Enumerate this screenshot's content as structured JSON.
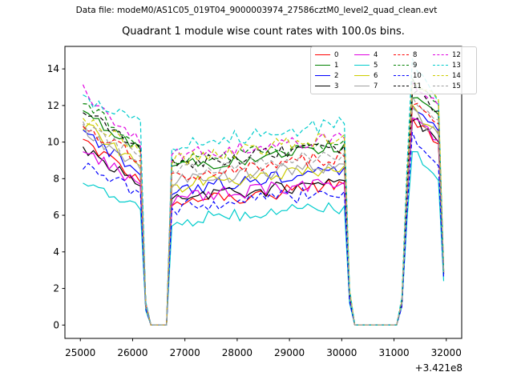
{
  "header": {
    "datafile_label": "Data file: modeM0/AS1C05_019T04_9000003974_27586cztM0_level2_quad_clean.evt"
  },
  "chart_data": {
    "type": "line",
    "title": "Quadrant 1 module wise count rates with 100.0s bins.",
    "bin_seconds": 100.0,
    "quadrant": 1,
    "x_axis": {
      "ticks": [
        25000,
        26000,
        27000,
        28000,
        29000,
        30000,
        31000,
        32000
      ],
      "offset_text": "+3.421e8",
      "lim": [
        24705,
        32295
      ]
    },
    "y_axis": {
      "ticks": [
        0,
        2,
        4,
        6,
        8,
        10,
        12,
        14
      ],
      "lim": [
        -0.73,
        15.23
      ]
    },
    "grid": false,
    "legend_position": "upper right",
    "profile_x": [
      25050,
      26150,
      26250,
      26350,
      26650,
      26750,
      30050,
      30150,
      30250,
      31050,
      31150,
      31250,
      31350,
      31850,
      31950
    ],
    "noise": {
      "segments": [
        [
          0,
          1
        ],
        [
          5,
          6
        ],
        [
          12,
          13
        ]
      ],
      "amp": [
        0.35,
        0.4,
        0.28
      ]
    },
    "series": [
      {
        "label": "0",
        "color": "#ff0000",
        "dash": false,
        "profile_y": [
          10.0,
          7.8,
          0.9,
          0,
          0,
          6.6,
          7.7,
          1.4,
          0,
          0,
          1.1,
          6.8,
          11.3,
          9.9,
          2.8
        ]
      },
      {
        "label": "1",
        "color": "#008000",
        "dash": false,
        "profile_y": [
          11.6,
          9.6,
          1.2,
          0,
          0,
          8.6,
          9.9,
          1.8,
          0,
          0,
          1.3,
          7.6,
          12.6,
          11.5,
          2.9
        ]
      },
      {
        "label": "2",
        "color": "#0000ff",
        "dash": false,
        "profile_y": [
          10.6,
          8.2,
          1.0,
          0,
          0,
          7.4,
          8.6,
          1.5,
          0,
          0,
          1.2,
          7.1,
          11.9,
          10.6,
          2.8
        ]
      },
      {
        "label": "3",
        "color": "#000000",
        "dash": false,
        "profile_y": [
          9.8,
          7.6,
          0.9,
          0,
          0,
          6.8,
          7.9,
          1.4,
          0,
          0,
          1.1,
          6.8,
          11.4,
          10.0,
          2.8
        ]
      },
      {
        "label": "4",
        "color": "#e000e0",
        "dash": false,
        "profile_y": [
          9.5,
          7.7,
          0.9,
          0,
          0,
          6.9,
          7.8,
          1.4,
          0,
          0,
          1.1,
          6.8,
          11.3,
          10.1,
          2.9
        ]
      },
      {
        "label": "5",
        "color": "#00cccc",
        "dash": false,
        "profile_y": [
          7.8,
          6.3,
          0.8,
          0,
          0,
          5.7,
          6.5,
          1.2,
          0,
          0,
          1.0,
          5.8,
          9.7,
          7.9,
          2.4
        ]
      },
      {
        "label": "6",
        "color": "#cccc00",
        "dash": false,
        "profile_y": [
          11.0,
          8.7,
          1.0,
          0,
          0,
          7.6,
          8.7,
          1.6,
          0,
          0,
          1.2,
          7.1,
          11.8,
          10.5,
          2.9
        ]
      },
      {
        "label": "7",
        "color": "#a0a0a0",
        "dash": false,
        "profile_y": [
          10.7,
          8.5,
          1.0,
          0,
          0,
          7.8,
          8.8,
          1.6,
          0,
          0,
          1.2,
          7.0,
          11.6,
          10.4,
          2.9
        ]
      },
      {
        "label": "8",
        "color": "#ff0000",
        "dash": true,
        "profile_y": [
          10.9,
          9.0,
          1.1,
          0,
          0,
          8.1,
          9.2,
          1.7,
          0,
          0,
          1.2,
          7.3,
          12.2,
          11.0,
          2.9
        ]
      },
      {
        "label": "9",
        "color": "#008000",
        "dash": true,
        "profile_y": [
          12.2,
          9.8,
          1.2,
          0,
          0,
          8.8,
          10.1,
          1.8,
          0,
          0,
          1.3,
          8.0,
          13.4,
          12.1,
          3.0
        ]
      },
      {
        "label": "10",
        "color": "#0000ff",
        "dash": true,
        "profile_y": [
          8.7,
          7.2,
          0.9,
          0,
          0,
          6.4,
          7.3,
          1.3,
          0,
          0,
          1.0,
          6.2,
          10.4,
          8.7,
          2.6
        ]
      },
      {
        "label": "11",
        "color": "#000000",
        "dash": true,
        "profile_y": [
          11.7,
          9.7,
          1.2,
          0,
          0,
          8.7,
          9.8,
          1.8,
          0,
          0,
          1.3,
          7.7,
          12.8,
          11.7,
          3.0
        ]
      },
      {
        "label": "12",
        "color": "#e000e0",
        "dash": true,
        "profile_y": [
          12.8,
          9.9,
          1.2,
          0,
          0,
          9.3,
          10.2,
          1.8,
          0,
          0,
          1.3,
          7.9,
          13.1,
          12.0,
          3.0
        ]
      },
      {
        "label": "13",
        "color": "#00cccc",
        "dash": true,
        "profile_y": [
          12.3,
          11.2,
          1.3,
          0,
          0,
          9.8,
          11.0,
          2.0,
          0,
          0,
          1.5,
          8.7,
          14.5,
          12.2,
          2.9
        ]
      },
      {
        "label": "14",
        "color": "#cccc00",
        "dash": true,
        "profile_y": [
          11.4,
          9.4,
          1.1,
          0,
          0,
          8.9,
          10.4,
          1.9,
          0,
          0,
          1.3,
          7.9,
          13.2,
          12.3,
          3.0
        ]
      },
      {
        "label": "15",
        "color": "#a0a0a0",
        "dash": true,
        "profile_y": [
          10.8,
          9.2,
          1.1,
          0,
          0,
          8.4,
          9.4,
          1.7,
          0,
          0,
          1.2,
          7.4,
          12.4,
          11.2,
          2.9
        ]
      }
    ]
  },
  "style": {
    "spine_color": "#000000",
    "text_color": "#000000",
    "legend_border": "#cccccc",
    "figure_bg": "#ffffff"
  }
}
